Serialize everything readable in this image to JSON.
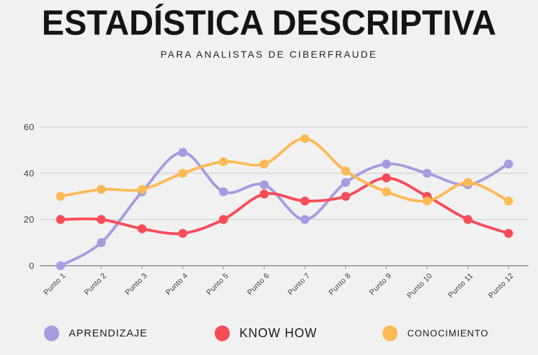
{
  "header": {
    "title": "ESTADÍSTICA DESCRIPTIVA",
    "subtitle": "PARA ANALISTAS DE CIBERFRAUDE"
  },
  "colors": {
    "background": "#f2f1f1",
    "gridline": "#d7d6d6",
    "baseline": "#8c8b8b",
    "tick_text": "#3d3c3c",
    "title_text": "#141414",
    "purple": "#a79bdf",
    "red": "#f84c58",
    "orange": "#fbba55"
  },
  "chart_data": {
    "type": "line",
    "title": "ESTADÍSTICA DESCRIPTIVA",
    "subtitle": "PARA ANALISTAS DE CIBERFRAUDE",
    "categories": [
      "Punto 1",
      "Punto 2",
      "Punto 3",
      "Punto 4",
      "Punto 5",
      "Punto 6",
      "Punto 7",
      "Punto 8",
      "Punto 9",
      "Punto 10",
      "Punto 11",
      "Punto 12"
    ],
    "series": [
      {
        "name": "APRENDIZAJE",
        "color": "#a79bdf",
        "values": [
          0,
          10,
          32,
          49,
          32,
          35,
          20,
          36,
          44,
          40,
          35,
          44
        ]
      },
      {
        "name": "KNOW HOW",
        "color": "#f84c58",
        "values": [
          20,
          20,
          16,
          14,
          20,
          31,
          28,
          30,
          38,
          30,
          20,
          14
        ]
      },
      {
        "name": "CONOCIMIENTO",
        "color": "#fbba55",
        "values": [
          30,
          33,
          33,
          40,
          45,
          44,
          55,
          41,
          32,
          28,
          36,
          28
        ]
      }
    ],
    "xlabel": "",
    "ylabel": "",
    "ylim": [
      0,
      60
    ],
    "yticks": [
      0,
      20,
      40,
      60
    ],
    "grid": true,
    "curve": "smooth",
    "marker": "circle",
    "legend_position": "bottom"
  },
  "legend": {
    "items": [
      {
        "label": "APRENDIZAJE",
        "color": "#a79bdf"
      },
      {
        "label": "KNOW HOW",
        "color": "#f84c58"
      },
      {
        "label": "CONOCIMIENTO",
        "color": "#fbba55"
      }
    ]
  }
}
